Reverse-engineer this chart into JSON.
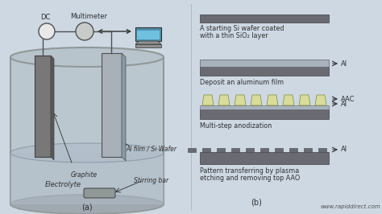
{
  "bg_color": "#cdd8e3",
  "website": "www.rapiddirect.com",
  "label_a": "(a)",
  "label_b": "(b)",
  "step1_text_line1": "A starting Si wafer coated",
  "step1_text_line2": "with a thin SiO₂ layer",
  "step2_text": "Deposit an aluminum film",
  "step3_text": "Multi-step anodization",
  "step4_text_line1": "Pattern transferring by plasma",
  "step4_text_line2": "etching and removing top AAO",
  "labels": {
    "dc": "DC",
    "multimeter": "Multimeter",
    "al_wafer": "Al film / Si Wafer",
    "graphite": "Graphite",
    "stirring": "Stirring bar",
    "electrolyte": "Electrolyte",
    "al1": "Al",
    "al2": "Al",
    "aac": "AAC",
    "al3": "Al",
    "al4": "Al"
  },
  "colors": {
    "cylinder_edge": "#909898",
    "cylinder_fill": "#b8c4cc",
    "electrode_dark": "#787878",
    "electrode_mid": "#9090a0",
    "electrode_light": "#a8b0b8",
    "si_layer": "#686870",
    "al_layer": "#b0b8c0",
    "aac_color": "#d8dc98",
    "electrolyte_fill": "#b0bcc8",
    "stirbar_color": "#909898",
    "text_color": "#303030",
    "arrow_color": "#303030",
    "wire_color": "#505050",
    "dc_circle": "#e8e8e8",
    "ammeter_circle": "#c8ccc8",
    "computer_body": "#5090b0",
    "computer_screen": "#70c0e0",
    "computer_base": "#909090"
  }
}
